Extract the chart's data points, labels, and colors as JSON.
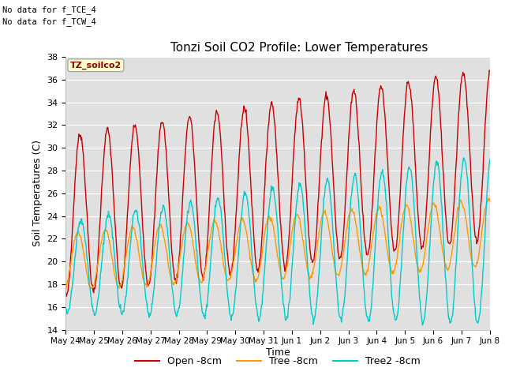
{
  "title": "Tonzi Soil CO2 Profile: Lower Temperatures",
  "xlabel": "Time",
  "ylabel": "Soil Temperatures (C)",
  "ylim": [
    14,
    38
  ],
  "bg_color": "#e0e0e0",
  "fig_bg": "#ffffff",
  "grid_color": "#ffffff",
  "annotation1": "No data for f_TCE_4",
  "annotation2": "No data for f_TCW_4",
  "label_box": "TZ_soilco2",
  "legend": [
    "Open -8cm",
    "Tree -8cm",
    "Tree2 -8cm"
  ],
  "line_colors": [
    "#cc0000",
    "#ff9900",
    "#00cccc"
  ],
  "xtick_labels": [
    "May 24",
    "May 25",
    "May 26",
    "May 27",
    "May 28",
    "May 29",
    "May 30",
    "May 31",
    "Jun 1",
    "Jun 2",
    "Jun 3",
    "Jun 4",
    "Jun 5",
    "Jun 6",
    "Jun 7",
    "Jun 8"
  ],
  "ytick_vals": [
    14,
    16,
    18,
    20,
    22,
    24,
    26,
    28,
    30,
    32,
    34,
    36,
    38
  ]
}
